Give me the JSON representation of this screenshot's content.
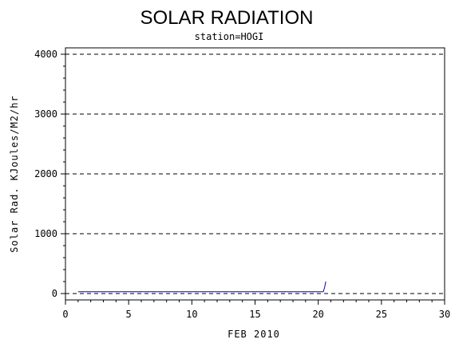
{
  "chart_data": {
    "type": "line",
    "title": "SOLAR RADIATION",
    "subtitle": "station=HOGI",
    "xlabel": "FEB 2010",
    "ylabel": "Solar Rad. KJoules/M2/hr",
    "xlim": [
      0,
      30
    ],
    "ylim": [
      0,
      4000
    ],
    "x_ticks": [
      0,
      5,
      10,
      15,
      20,
      25,
      30
    ],
    "y_ticks": [
      0,
      1000,
      2000,
      3000,
      4000
    ],
    "x_tick_labels": [
      "0",
      "5",
      "10",
      "15",
      "20",
      "25",
      "30"
    ],
    "y_tick_labels": [
      "0",
      "1000",
      "2000",
      "3000",
      "4000"
    ],
    "grid": "horizontal dashed",
    "series": [
      {
        "color": "#0000cc",
        "x": [
          1,
          20.4,
          20.5,
          20.6
        ],
        "y": [
          30,
          30,
          100,
          200
        ]
      }
    ]
  }
}
